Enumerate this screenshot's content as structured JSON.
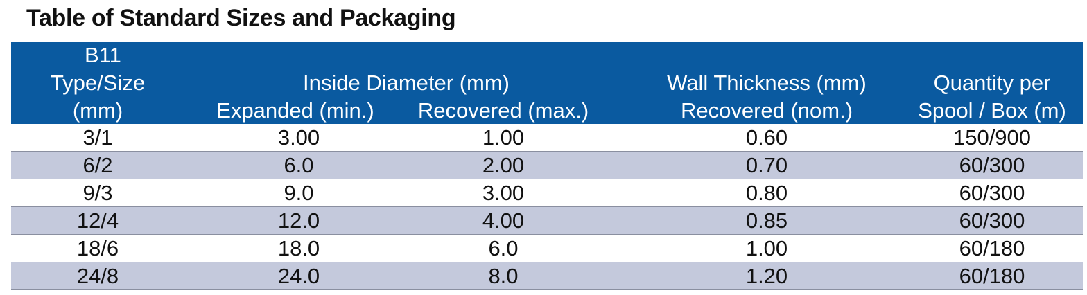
{
  "title": "Table of Standard Sizes and Packaging",
  "header": {
    "col1": [
      "B11",
      "Type/Size",
      "(mm)"
    ],
    "inside_diameter": "Inside Diameter (mm)",
    "expanded": "Expanded (min.)",
    "recovered_max": "Recovered (max.)",
    "wall_thickness": "Wall Thickness (mm)",
    "recovered_nom": "Recovered (nom.)",
    "quantity": [
      "Quantity per",
      "Spool / Box (m)"
    ]
  },
  "rows": [
    [
      "3/1",
      "3.00",
      "1.00",
      "0.60",
      "150/900"
    ],
    [
      "6/2",
      "6.0",
      "2.00",
      "0.70",
      "60/300"
    ],
    [
      "9/3",
      "9.0",
      "3.00",
      "0.80",
      "60/300"
    ],
    [
      "12/4",
      "12.0",
      "4.00",
      "0.85",
      "60/300"
    ],
    [
      "18/6",
      "18.0",
      "6.0",
      "1.00",
      "60/180"
    ],
    [
      "24/8",
      "24.0",
      "8.0",
      "1.20",
      "60/180"
    ]
  ],
  "colors": {
    "header_bg": "#0a5aa0",
    "stripe_bg": "#c4c9dc"
  }
}
